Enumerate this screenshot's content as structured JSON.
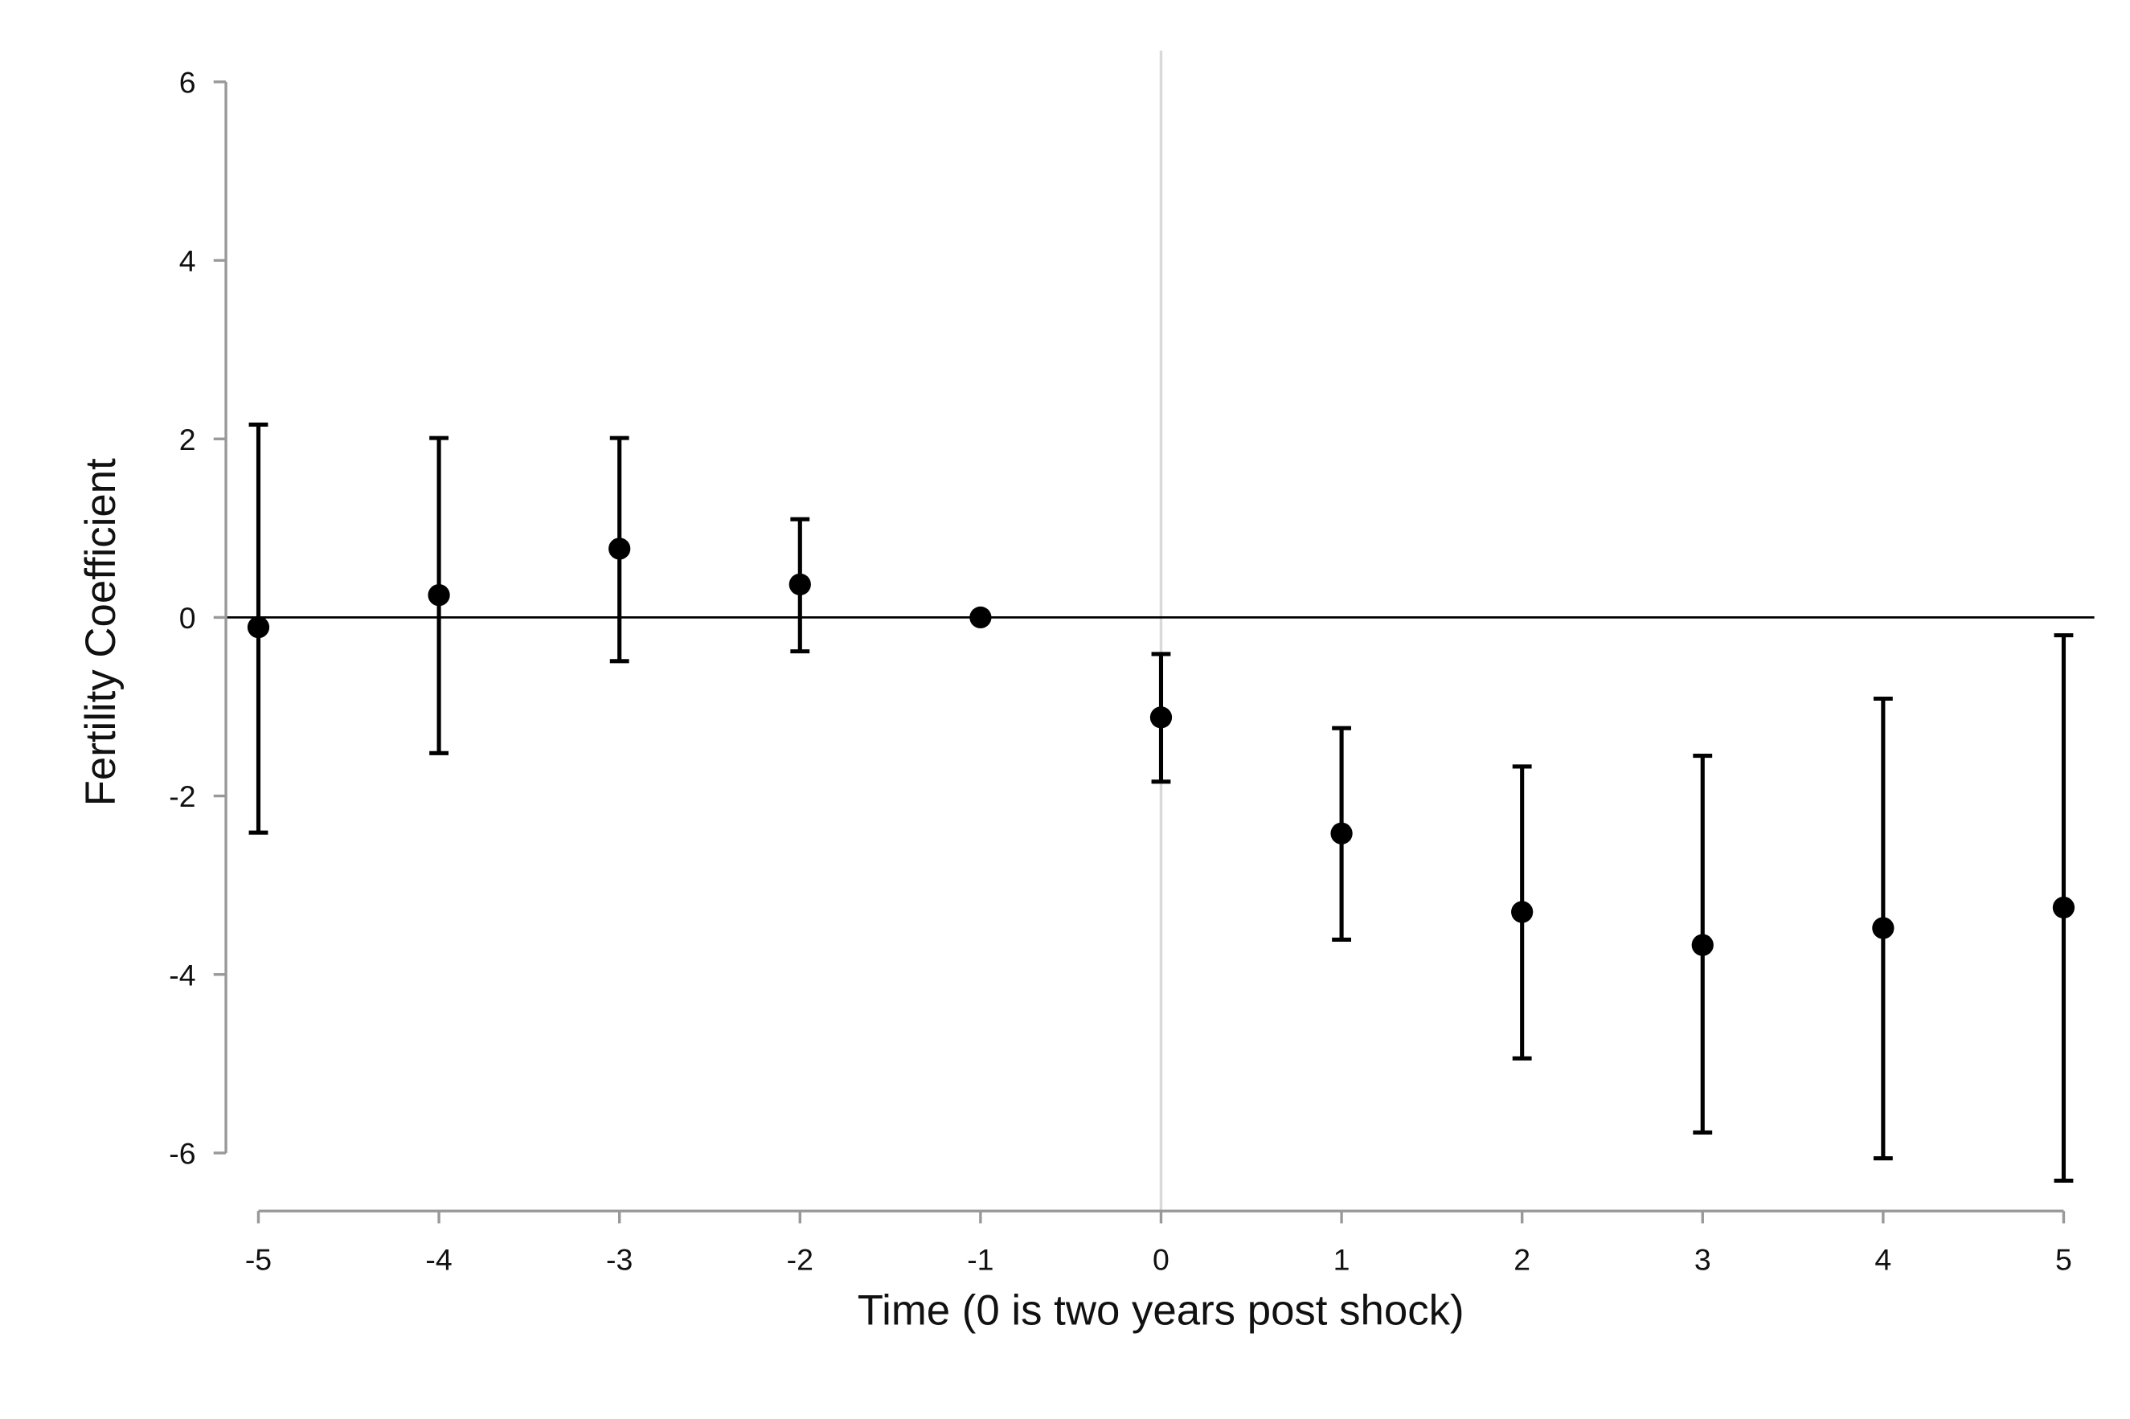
{
  "chart_data": {
    "type": "errorbar",
    "x_label": "Time (0 is two years post shock)",
    "y_label": "Fertility Coefficient",
    "x": [
      -5,
      -4,
      -3,
      -2,
      -1,
      0,
      1,
      2,
      3,
      4,
      5
    ],
    "series": [
      {
        "color": "#000000",
        "values": [
          -0.11,
          0.25,
          0.77,
          0.37,
          0,
          -1.12,
          -2.42,
          -3.3,
          -3.67,
          -3.48,
          -3.25
        ],
        "lower": [
          -2.41,
          -1.52,
          -0.49,
          -0.38,
          null,
          -1.84,
          -3.61,
          -4.94,
          -5.77,
          -6.06,
          -6.31
        ],
        "upper": [
          2.16,
          2.01,
          2.01,
          1.1,
          null,
          -0.41,
          -1.24,
          -1.67,
          -1.55,
          -0.91,
          -0.2
        ]
      }
    ],
    "xlim": [
      -5.18,
      5.17
    ],
    "ylim": [
      -6.65,
      6.35
    ],
    "xticks": [
      -5,
      -4,
      -3,
      -2,
      -1,
      0,
      1,
      2,
      3,
      4,
      5
    ],
    "yticks": [
      -6,
      -4,
      -2,
      0,
      2,
      4,
      6
    ],
    "hline": 0,
    "vline": 0
  }
}
